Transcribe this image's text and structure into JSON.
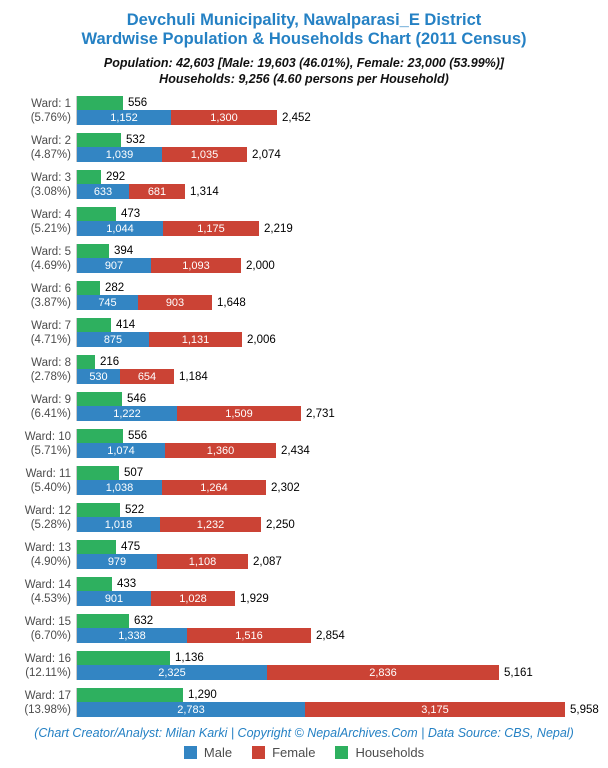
{
  "header": {
    "title_line1": "Devchuli Municipality, Nawalparasi_E District",
    "title_line2": "Wardwise Population & Households Chart (2011 Census)",
    "subtitle_line1": "Population: 42,603 [Male: 19,603 (46.01%), Female: 23,000 (53.99%)]",
    "subtitle_line2": "Households: 9,256 (4.60 persons per Household)"
  },
  "footer": {
    "credit": "(Chart Creator/Analyst: Milan Karki | Copyright © NepalArchives.Com | Data Source: CBS, Nepal)"
  },
  "colors": {
    "male": "#3385c3",
    "female": "#cb4335",
    "households": "#2eb05f",
    "title": "#2581c4",
    "axis_line": "#c9c9c9",
    "label_gray": "#4d4d4d"
  },
  "legend": [
    {
      "name": "male-swatch",
      "label": "Male",
      "color": "#3385c3"
    },
    {
      "name": "female-swatch",
      "label": "Female",
      "color": "#cb4335"
    },
    {
      "name": "households-swatch",
      "label": "Households",
      "color": "#2eb05f"
    }
  ],
  "chart_data": {
    "type": "bar",
    "orientation": "horizontal",
    "title": "Devchuli Municipality, Nawalparasi_E District — Wardwise Population & Households Chart (2011 Census)",
    "legend_position": "bottom",
    "x_max": 6000,
    "grid": false,
    "categories": [
      "Ward: 1",
      "Ward: 2",
      "Ward: 3",
      "Ward: 4",
      "Ward: 5",
      "Ward: 6",
      "Ward: 7",
      "Ward: 8",
      "Ward: 9",
      "Ward: 10",
      "Ward: 11",
      "Ward: 12",
      "Ward: 13",
      "Ward: 14",
      "Ward: 15",
      "Ward: 16",
      "Ward: 17"
    ],
    "series": [
      {
        "name": "Male",
        "color": "#3385c3",
        "values": [
          1152,
          1039,
          633,
          1044,
          907,
          745,
          875,
          530,
          1222,
          1074,
          1038,
          1018,
          979,
          901,
          1338,
          2325,
          2783
        ]
      },
      {
        "name": "Female",
        "color": "#cb4335",
        "values": [
          1300,
          1035,
          681,
          1175,
          1093,
          903,
          1131,
          654,
          1509,
          1360,
          1264,
          1232,
          1108,
          1028,
          1516,
          2836,
          3175
        ]
      },
      {
        "name": "Households",
        "color": "#2eb05f",
        "values": [
          556,
          532,
          292,
          473,
          394,
          282,
          414,
          216,
          546,
          556,
          507,
          522,
          475,
          433,
          632,
          1136,
          1290
        ]
      }
    ],
    "totals": [
      2452,
      2074,
      1314,
      2219,
      2000,
      1648,
      2006,
      1184,
      2731,
      2434,
      2302,
      2250,
      2087,
      1929,
      2854,
      5161,
      5958
    ],
    "wards": [
      {
        "ward_label": "Ward: 1",
        "percent_label": "(5.76%)",
        "households": 556,
        "male": 1152,
        "female": 1300,
        "total": 2452,
        "households_label": "556",
        "male_label": "1,152",
        "female_label": "1,300",
        "total_label": "2,452"
      },
      {
        "ward_label": "Ward: 2",
        "percent_label": "(4.87%)",
        "households": 532,
        "male": 1039,
        "female": 1035,
        "total": 2074,
        "households_label": "532",
        "male_label": "1,039",
        "female_label": "1,035",
        "total_label": "2,074"
      },
      {
        "ward_label": "Ward: 3",
        "percent_label": "(3.08%)",
        "households": 292,
        "male": 633,
        "female": 681,
        "total": 1314,
        "households_label": "292",
        "male_label": "633",
        "female_label": "681",
        "total_label": "1,314"
      },
      {
        "ward_label": "Ward: 4",
        "percent_label": "(5.21%)",
        "households": 473,
        "male": 1044,
        "female": 1175,
        "total": 2219,
        "households_label": "473",
        "male_label": "1,044",
        "female_label": "1,175",
        "total_label": "2,219"
      },
      {
        "ward_label": "Ward: 5",
        "percent_label": "(4.69%)",
        "households": 394,
        "male": 907,
        "female": 1093,
        "total": 2000,
        "households_label": "394",
        "male_label": "907",
        "female_label": "1,093",
        "total_label": "2,000"
      },
      {
        "ward_label": "Ward: 6",
        "percent_label": "(3.87%)",
        "households": 282,
        "male": 745,
        "female": 903,
        "total": 1648,
        "households_label": "282",
        "male_label": "745",
        "female_label": "903",
        "total_label": "1,648"
      },
      {
        "ward_label": "Ward: 7",
        "percent_label": "(4.71%)",
        "households": 414,
        "male": 875,
        "female": 1131,
        "total": 2006,
        "households_label": "414",
        "male_label": "875",
        "female_label": "1,131",
        "total_label": "2,006"
      },
      {
        "ward_label": "Ward: 8",
        "percent_label": "(2.78%)",
        "households": 216,
        "male": 530,
        "female": 654,
        "total": 1184,
        "households_label": "216",
        "male_label": "530",
        "female_label": "654",
        "total_label": "1,184"
      },
      {
        "ward_label": "Ward: 9",
        "percent_label": "(6.41%)",
        "households": 546,
        "male": 1222,
        "female": 1509,
        "total": 2731,
        "households_label": "546",
        "male_label": "1,222",
        "female_label": "1,509",
        "total_label": "2,731"
      },
      {
        "ward_label": "Ward: 10",
        "percent_label": "(5.71%)",
        "households": 556,
        "male": 1074,
        "female": 1360,
        "total": 2434,
        "households_label": "556",
        "male_label": "1,074",
        "female_label": "1,360",
        "total_label": "2,434"
      },
      {
        "ward_label": "Ward: 11",
        "percent_label": "(5.40%)",
        "households": 507,
        "male": 1038,
        "female": 1264,
        "total": 2302,
        "households_label": "507",
        "male_label": "1,038",
        "female_label": "1,264",
        "total_label": "2,302"
      },
      {
        "ward_label": "Ward: 12",
        "percent_label": "(5.28%)",
        "households": 522,
        "male": 1018,
        "female": 1232,
        "total": 2250,
        "households_label": "522",
        "male_label": "1,018",
        "female_label": "1,232",
        "total_label": "2,250"
      },
      {
        "ward_label": "Ward: 13",
        "percent_label": "(4.90%)",
        "households": 475,
        "male": 979,
        "female": 1108,
        "total": 2087,
        "households_label": "475",
        "male_label": "979",
        "female_label": "1,108",
        "total_label": "2,087"
      },
      {
        "ward_label": "Ward: 14",
        "percent_label": "(4.53%)",
        "households": 433,
        "male": 901,
        "female": 1028,
        "total": 1929,
        "households_label": "433",
        "male_label": "901",
        "female_label": "1,028",
        "total_label": "1,929"
      },
      {
        "ward_label": "Ward: 15",
        "percent_label": "(6.70%)",
        "households": 632,
        "male": 1338,
        "female": 1516,
        "total": 2854,
        "households_label": "632",
        "male_label": "1,338",
        "female_label": "1,516",
        "total_label": "2,854"
      },
      {
        "ward_label": "Ward: 16",
        "percent_label": "(12.11%)",
        "households": 1136,
        "male": 2325,
        "female": 2836,
        "total": 5161,
        "households_label": "1,136",
        "male_label": "2,325",
        "female_label": "2,836",
        "total_label": "5,161"
      },
      {
        "ward_label": "Ward: 17",
        "percent_label": "(13.98%)",
        "households": 1290,
        "male": 2783,
        "female": 3175,
        "total": 5958,
        "households_label": "1,290",
        "male_label": "2,783",
        "female_label": "3,175",
        "total_label": "5,958"
      }
    ]
  }
}
